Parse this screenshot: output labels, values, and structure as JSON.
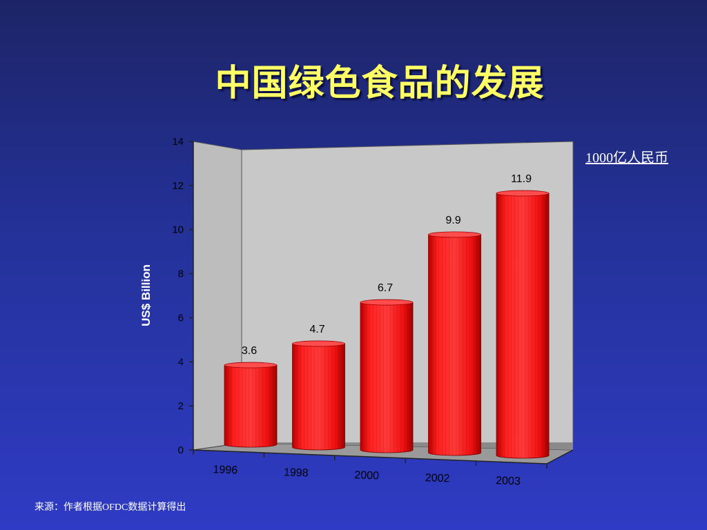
{
  "slide": {
    "title": "中国绿色食品的发展",
    "unit_note": "1000亿人民币",
    "source": "来源：作者根据OFDC数据计算得出"
  },
  "colors": {
    "background_top": "#1d2466",
    "background_bottom": "#2f3bc4",
    "title": "#ffff66",
    "bar": "#ff1010",
    "bar_dark": "#c00000",
    "wall": "#c8c8c8",
    "floor": "#9a9a9a"
  },
  "chart_data": {
    "type": "bar",
    "categories": [
      "1996",
      "1998",
      "2000",
      "2002",
      "2003"
    ],
    "values": [
      3.6,
      4.7,
      6.7,
      9.9,
      11.9
    ],
    "data_labels": [
      "3.6",
      "4.7",
      "6.7",
      "9.9",
      "11.9"
    ],
    "ylabel": "US$ Billion",
    "ylim": [
      0,
      14
    ],
    "yticks": [
      "0",
      "2",
      "4",
      "6",
      "8",
      "10",
      "12",
      "14"
    ],
    "bar_shape": "cylinder",
    "grid": false,
    "legend": "none"
  }
}
